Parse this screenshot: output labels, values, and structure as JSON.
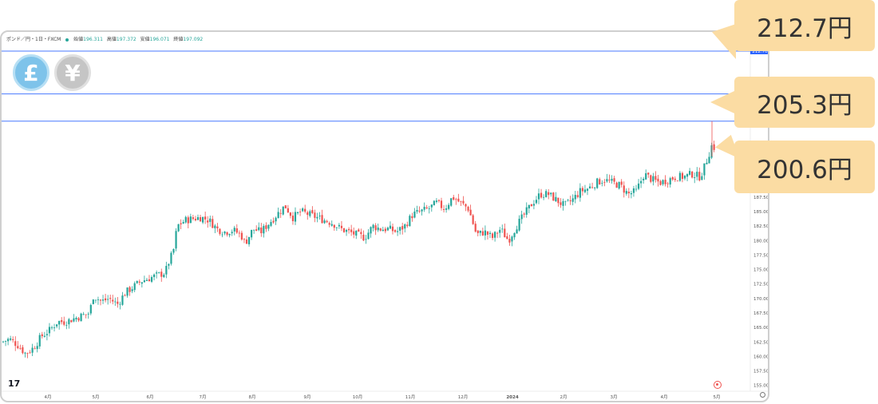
{
  "header": {
    "symbol": "ポンド／円・1日・FXCM",
    "open_label": "始値",
    "open": "196.311",
    "high_label": "高値",
    "high": "197.372",
    "low_label": "安値",
    "low": "196.071",
    "close_label": "終値",
    "close": "197.092"
  },
  "icons": {
    "pound": "£",
    "yen": "¥",
    "logo": "tradingview-logo-icon",
    "target": "target-icon"
  },
  "colors": {
    "up": "#26a69a",
    "down": "#ef5350",
    "line": "#2962ff",
    "callout": "#fbdca3"
  },
  "callouts": [
    "212.7円",
    "205.3円",
    "200.6円"
  ],
  "chart_data": {
    "type": "candlestick",
    "ylim": [
      154,
      216
    ],
    "y_ticks": [
      155.0,
      157.5,
      160.0,
      162.5,
      165.0,
      167.5,
      170.0,
      172.5,
      175.0,
      177.5,
      180.0,
      182.5,
      185.0,
      187.5
    ],
    "x_ticks": [
      "4月",
      "5月",
      "6月",
      "7月",
      "8月",
      "9月",
      "10月",
      "11月",
      "12月",
      "2024",
      "2月",
      "3月",
      "4月",
      "5月"
    ],
    "hlines": [
      {
        "value": 212.7,
        "label": "212.70"
      },
      {
        "value": 205.3,
        "label": ""
      },
      {
        "value": 200.6,
        "label": "200.60"
      }
    ],
    "close_path": [
      [
        0,
        162.5
      ],
      [
        10,
        163.0
      ],
      [
        20,
        162.0
      ],
      [
        30,
        160.5
      ],
      [
        40,
        161.5
      ],
      [
        50,
        163.5
      ],
      [
        60,
        164.5
      ],
      [
        70,
        166.0
      ],
      [
        80,
        166.0
      ],
      [
        90,
        166.5
      ],
      [
        100,
        167.0
      ],
      [
        110,
        167.5
      ],
      [
        115,
        170.5
      ],
      [
        125,
        169.5
      ],
      [
        135,
        170.0
      ],
      [
        145,
        169.0
      ],
      [
        155,
        171.0
      ],
      [
        165,
        172.0
      ],
      [
        175,
        173.0
      ],
      [
        185,
        173.5
      ],
      [
        195,
        174.0
      ],
      [
        205,
        174.5
      ],
      [
        210,
        176.5
      ],
      [
        215,
        178.0
      ],
      [
        220,
        182.5
      ],
      [
        230,
        183.5
      ],
      [
        240,
        183.8
      ],
      [
        250,
        184.0
      ],
      [
        260,
        183.5
      ],
      [
        270,
        182.0
      ],
      [
        280,
        181.5
      ],
      [
        290,
        181.8
      ],
      [
        300,
        181.0
      ],
      [
        305,
        179.5
      ],
      [
        315,
        182.0
      ],
      [
        325,
        181.5
      ],
      [
        335,
        183.0
      ],
      [
        345,
        184.5
      ],
      [
        355,
        186.0
      ],
      [
        365,
        184.0
      ],
      [
        375,
        185.0
      ],
      [
        385,
        184.5
      ],
      [
        395,
        184.0
      ],
      [
        405,
        183.5
      ],
      [
        415,
        183.0
      ],
      [
        425,
        182.0
      ],
      [
        435,
        181.5
      ],
      [
        445,
        181.0
      ],
      [
        455,
        180.5
      ],
      [
        465,
        182.5
      ],
      [
        475,
        182.0
      ],
      [
        485,
        182.0
      ],
      [
        495,
        181.5
      ],
      [
        505,
        182.5
      ],
      [
        515,
        184.5
      ],
      [
        525,
        185.0
      ],
      [
        535,
        185.5
      ],
      [
        545,
        186.5
      ],
      [
        555,
        185.5
      ],
      [
        565,
        187.5
      ],
      [
        575,
        186.5
      ],
      [
        585,
        185.5
      ],
      [
        595,
        181.0
      ],
      [
        605,
        181.5
      ],
      [
        615,
        180.5
      ],
      [
        625,
        182.0
      ],
      [
        635,
        180.0
      ],
      [
        645,
        182.5
      ],
      [
        655,
        184.5
      ],
      [
        665,
        186.5
      ],
      [
        675,
        188.0
      ],
      [
        685,
        188.0
      ],
      [
        695,
        187.0
      ],
      [
        705,
        186.0
      ],
      [
        715,
        187.0
      ],
      [
        725,
        188.5
      ],
      [
        735,
        189.0
      ],
      [
        745,
        190.0
      ],
      [
        755,
        190.5
      ],
      [
        765,
        190.0
      ],
      [
        775,
        189.5
      ],
      [
        785,
        188.0
      ],
      [
        795,
        188.5
      ],
      [
        805,
        191.5
      ],
      [
        815,
        190.5
      ],
      [
        825,
        190.0
      ],
      [
        835,
        190.5
      ],
      [
        845,
        191.0
      ],
      [
        855,
        191.0
      ],
      [
        865,
        191.5
      ],
      [
        875,
        191.0
      ],
      [
        880,
        192.5
      ],
      [
        885,
        194.5
      ],
      [
        890,
        196.5
      ],
      [
        893,
        196.0
      ]
    ]
  }
}
